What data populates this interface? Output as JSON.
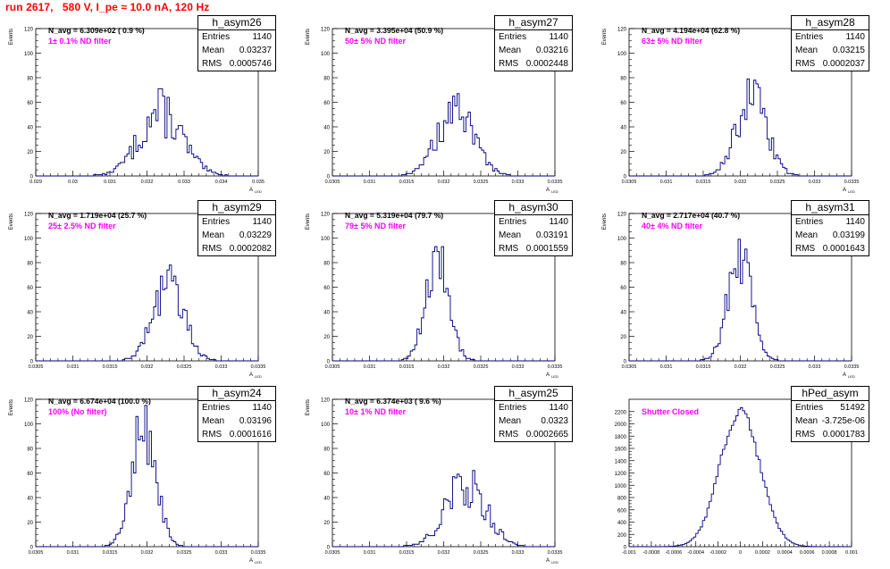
{
  "header": {
    "run_title": "run 2617,   580 V, I_pe ≈ 10.0 nA, 120 Hz"
  },
  "stats_labels": {
    "entries": "Entries",
    "mean": "Mean",
    "rms": "RMS"
  },
  "colors": {
    "histogram": "#000080",
    "title": "#ff0000",
    "filter": "#ff00ff"
  },
  "chart_data": [
    {
      "type": "bar",
      "name": "h_asym26",
      "navg": "N_avg = 6.309e+02 ( 0.9 %)",
      "filter": "1± 0.1% ND filter",
      "ylabel": "Events",
      "xlabel": "A",
      "xlabel_sub": "LED",
      "xlim": [
        0.029,
        0.035
      ],
      "ylim": [
        0,
        120
      ],
      "xticks": [
        0.029,
        0.03,
        0.031,
        0.032,
        0.033,
        0.034,
        0.035
      ],
      "xtick_labels": [
        "0.029",
        "0.03",
        "0.031",
        "0.032",
        "0.033",
        "0.034",
        "0.035"
      ],
      "yticks": [
        0,
        20,
        40,
        60,
        80,
        100,
        120
      ],
      "mean": 0.03237,
      "rms": 0.0005746,
      "peak": 52,
      "jitter": 0.4,
      "stats": {
        "entries": "1140",
        "mean": "0.03237",
        "rms": "0.0005746"
      }
    },
    {
      "type": "bar",
      "name": "h_asym27",
      "navg": "N_avg = 3.395e+04 (50.9 %)",
      "filter": "50± 5% ND filter",
      "ylabel": "Events",
      "xlabel": "A",
      "xlabel_sub": "LED",
      "xlim": [
        0.0305,
        0.0335
      ],
      "ylim": [
        0,
        120
      ],
      "xticks": [
        0.0305,
        0.031,
        0.0315,
        0.032,
        0.0325,
        0.033,
        0.0335
      ],
      "xtick_labels": [
        "0.0305",
        "0.031",
        "0.0315",
        "0.032",
        "0.0325",
        "0.033",
        "0.0335"
      ],
      "yticks": [
        0,
        20,
        40,
        60,
        80,
        100,
        120
      ],
      "mean": 0.03216,
      "rms": 0.0002448,
      "peak": 52,
      "jitter": 0.35,
      "stats": {
        "entries": "1140",
        "mean": "0.03216",
        "rms": "0.0002448"
      }
    },
    {
      "type": "bar",
      "name": "h_asym28",
      "navg": "N_avg = 4.194e+04 (62.8 %)",
      "filter": "63± 5% ND filter",
      "ylabel": "Events",
      "xlabel": "A",
      "xlabel_sub": "LED",
      "xlim": [
        0.0305,
        0.0335
      ],
      "ylim": [
        0,
        120
      ],
      "xticks": [
        0.0305,
        0.031,
        0.0315,
        0.032,
        0.0325,
        0.033,
        0.0335
      ],
      "xtick_labels": [
        "0.0305",
        "0.031",
        "0.0315",
        "0.032",
        "0.0325",
        "0.033",
        "0.0335"
      ],
      "yticks": [
        0,
        20,
        40,
        60,
        80,
        100,
        120
      ],
      "mean": 0.03215,
      "rms": 0.0002037,
      "peak": 64,
      "jitter": 0.3,
      "stats": {
        "entries": "1140",
        "mean": "0.03215",
        "rms": "0.0002037"
      }
    },
    {
      "type": "bar",
      "name": "h_asym29",
      "navg": "N_avg = 1.719e+04 (25.7 %)",
      "filter": "25± 2.5% ND filter",
      "ylabel": "Events",
      "xlabel": "A",
      "xlabel_sub": "LED",
      "xlim": [
        0.0305,
        0.0335
      ],
      "ylim": [
        0,
        120
      ],
      "xticks": [
        0.0305,
        0.031,
        0.0315,
        0.032,
        0.0325,
        0.033,
        0.0335
      ],
      "xtick_labels": [
        "0.0305",
        "0.031",
        "0.0315",
        "0.032",
        "0.0325",
        "0.033",
        "0.0335"
      ],
      "yticks": [
        0,
        20,
        40,
        60,
        80,
        100,
        120
      ],
      "mean": 0.03229,
      "rms": 0.0002082,
      "peak": 62,
      "jitter": 0.3,
      "stats": {
        "entries": "1140",
        "mean": "0.03229",
        "rms": "0.0002082"
      }
    },
    {
      "type": "bar",
      "name": "h_asym30",
      "navg": "N_avg = 5.319e+04 (79.7 %)",
      "filter": "79± 5% ND filter",
      "ylabel": "Events",
      "xlabel": "A",
      "xlabel_sub": "LED",
      "xlim": [
        0.0305,
        0.0335
      ],
      "ylim": [
        0,
        120
      ],
      "xticks": [
        0.0305,
        0.031,
        0.0315,
        0.032,
        0.0325,
        0.033,
        0.0335
      ],
      "xtick_labels": [
        "0.0305",
        "0.031",
        "0.0315",
        "0.032",
        "0.0325",
        "0.033",
        "0.0335"
      ],
      "yticks": [
        0,
        20,
        40,
        60,
        80,
        100,
        120
      ],
      "mean": 0.03191,
      "rms": 0.0001559,
      "peak": 84,
      "jitter": 0.3,
      "stats": {
        "entries": "1140",
        "mean": "0.03191",
        "rms": "0.0001559"
      }
    },
    {
      "type": "bar",
      "name": "h_asym31",
      "navg": "N_avg = 2.717e+04 (40.7 %)",
      "filter": "40± 4% ND filter",
      "ylabel": "Events",
      "xlabel": "A",
      "xlabel_sub": "LED",
      "xlim": [
        0.0305,
        0.0335
      ],
      "ylim": [
        0,
        120
      ],
      "xticks": [
        0.0305,
        0.031,
        0.0315,
        0.032,
        0.0325,
        0.033,
        0.0335
      ],
      "xtick_labels": [
        "0.0305",
        "0.031",
        "0.0315",
        "0.032",
        "0.0325",
        "0.033",
        "0.0335"
      ],
      "yticks": [
        0,
        20,
        40,
        60,
        80,
        100,
        120
      ],
      "mean": 0.03199,
      "rms": 0.0001643,
      "peak": 82,
      "jitter": 0.3,
      "stats": {
        "entries": "1140",
        "mean": "0.03199",
        "rms": "0.0001643"
      }
    },
    {
      "type": "bar",
      "name": "h_asym24",
      "navg": "N_avg = 6.674e+04 (100.0 %)",
      "filter": "100% (No filter)",
      "ylabel": "Events",
      "xlabel": "A",
      "xlabel_sub": "LED",
      "xlim": [
        0.0305,
        0.0335
      ],
      "ylim": [
        0,
        120
      ],
      "xticks": [
        0.0305,
        0.031,
        0.0315,
        0.032,
        0.0325,
        0.033,
        0.0335
      ],
      "xtick_labels": [
        "0.0305",
        "0.031",
        "0.0315",
        "0.032",
        "0.0325",
        "0.033",
        "0.0335"
      ],
      "yticks": [
        0,
        20,
        40,
        60,
        80,
        100,
        120
      ],
      "mean": 0.03196,
      "rms": 0.0001616,
      "peak": 100,
      "jitter": 0.3,
      "stats": {
        "entries": "1140",
        "mean": "0.03196",
        "rms": "0.0001616"
      }
    },
    {
      "type": "bar",
      "name": "h_asym25",
      "navg": "N_avg = 6.374e+03 ( 9.6 %)",
      "filter": "10± 1% ND filter",
      "ylabel": "Events",
      "xlabel": "A",
      "xlabel_sub": "LED",
      "xlim": [
        0.0305,
        0.0335
      ],
      "ylim": [
        0,
        120
      ],
      "xticks": [
        0.0305,
        0.031,
        0.0315,
        0.032,
        0.0325,
        0.033,
        0.0335
      ],
      "xtick_labels": [
        "0.0305",
        "0.031",
        "0.0315",
        "0.032",
        "0.0325",
        "0.033",
        "0.0335"
      ],
      "yticks": [
        0,
        20,
        40,
        60,
        80,
        100,
        120
      ],
      "mean": 0.0323,
      "rms": 0.0002665,
      "peak": 52,
      "jitter": 0.4,
      "stats": {
        "entries": "1140",
        "mean": "0.0323",
        "rms": "0.0002665"
      }
    },
    {
      "type": "bar",
      "name": "hPed_asym",
      "navg": "",
      "filter": "Shutter Closed",
      "ylabel": "",
      "xlabel": "",
      "xlabel_sub": "",
      "xlim": [
        -0.001,
        0.001
      ],
      "ylim": [
        0,
        2400
      ],
      "xticks": [
        -0.001,
        -0.0008,
        -0.0006,
        -0.0004,
        -0.0002,
        0,
        0.0002,
        0.0004,
        0.0006,
        0.0008,
        0.001
      ],
      "xtick_labels": [
        "-0.001",
        "-0.0008",
        "-0.0006",
        "-0.0004",
        "-0.0002",
        "0",
        "0.0002",
        "0.0004",
        "0.0006",
        "0.0008",
        "0.001"
      ],
      "yticks": [
        0,
        200,
        400,
        600,
        800,
        1000,
        1200,
        1400,
        1600,
        1800,
        2000,
        2200
      ],
      "mean": -3.725e-06,
      "rms": 0.0001783,
      "peak": 2200,
      "jitter": 0.05,
      "stats": {
        "entries": "51492",
        "mean": "-3.725e-06",
        "rms": "0.0001783"
      }
    }
  ]
}
